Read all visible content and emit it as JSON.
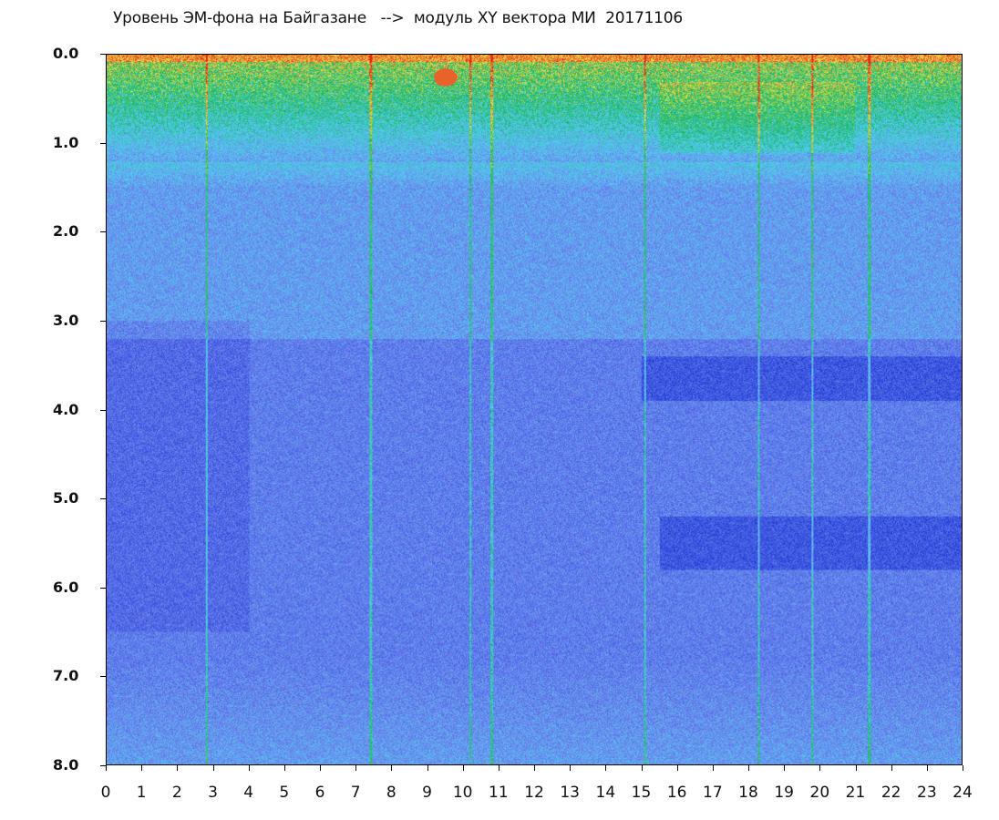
{
  "chart_data": {
    "type": "heatmap",
    "title": "Уровень ЭМ-фона на Байгазане   -->  модуль XY вектора МИ  20171106",
    "xlabel": "",
    "ylabel": "",
    "xlim": [
      0,
      24
    ],
    "ylim": [
      0.0,
      8.0
    ],
    "y_inverted": true,
    "x_ticks": [
      "0",
      "1",
      "2",
      "3",
      "4",
      "5",
      "6",
      "7",
      "8",
      "9",
      "10",
      "11",
      "12",
      "13",
      "14",
      "15",
      "16",
      "17",
      "18",
      "19",
      "20",
      "21",
      "22",
      "23",
      "24"
    ],
    "y_ticks": [
      "0.0",
      "1.0",
      "2.0",
      "3.0",
      "4.0",
      "5.0",
      "6.0",
      "7.0",
      "8.0"
    ],
    "colormap": [
      "#0a1fc8",
      "#3b55e0",
      "#6f86ee",
      "#4fd2ee",
      "#16b35a",
      "#e8e84a",
      "#e82a1c"
    ],
    "grid": false,
    "legend": "none",
    "features": {
      "high_intensity_band": {
        "y_from": 0.0,
        "y_to": 1.1,
        "colors": "red-yellow-green"
      },
      "vertical_streaks_hours": [
        2.8,
        7.4,
        10.2,
        10.8,
        15.1,
        18.3,
        19.8,
        21.4
      ],
      "red_blob": {
        "hour": 9.5,
        "y": 0.25
      },
      "dark_bands": [
        {
          "hour_from": 15.0,
          "hour_to": 24,
          "y_from": 3.4,
          "y_to": 3.9
        },
        {
          "hour_from": 15.5,
          "hour_to": 24,
          "y_from": 5.2,
          "y_to": 5.8
        }
      ]
    }
  }
}
